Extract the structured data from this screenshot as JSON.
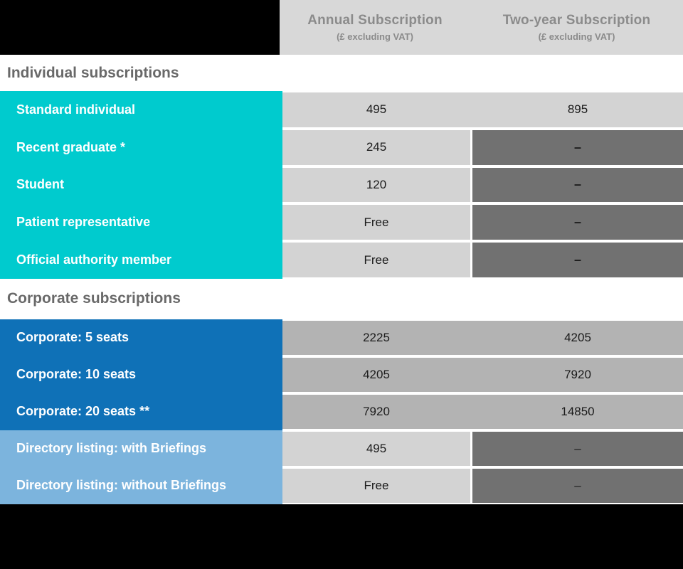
{
  "palette": {
    "teal": "#00cbce",
    "blue": "#0f71b7",
    "light_blue": "#7cb4dd",
    "cell_light": "#d3d3d3",
    "cell_medium": "#b3b3b3",
    "cell_dark": "#717171",
    "header_bg": "#d8d8d8",
    "header_text": "#8b8b8b",
    "title_color": "#696969",
    "black": "#000000",
    "value_text": "#1b1b1b",
    "label_text": "#ffffff"
  },
  "header": {
    "annual": {
      "title": "Annual Subscription",
      "subtitle": "(£ excluding VAT)"
    },
    "two_year": {
      "title": "Two-year Subscription",
      "subtitle": "(£ excluding VAT)"
    }
  },
  "sections": {
    "individual": {
      "title": "Individual subscriptions",
      "rows": [
        {
          "label": "Standard individual",
          "annual": "495",
          "two_year": "895"
        },
        {
          "label": "Recent graduate *",
          "annual": "245",
          "two_year": "–"
        },
        {
          "label": "Student",
          "annual": "120",
          "two_year": "–"
        },
        {
          "label": "Patient representative",
          "annual": "Free",
          "two_year": "–"
        },
        {
          "label": "Official authority member",
          "annual": "Free",
          "two_year": "–"
        }
      ]
    },
    "corporate": {
      "title": "Corporate subscriptions",
      "rows": [
        {
          "label": "Corporate: 5 seats",
          "annual": "2225",
          "two_year": "4205"
        },
        {
          "label": "Corporate: 10 seats",
          "annual": "4205",
          "two_year": "7920"
        },
        {
          "label": "Corporate: 20 seats **",
          "annual": "7920",
          "two_year": "14850"
        },
        {
          "label": "Directory listing: with Briefings",
          "annual": "495",
          "two_year": "–"
        },
        {
          "label": "Directory listing: without Briefings",
          "annual": "Free",
          "two_year": "–"
        }
      ]
    }
  },
  "chart_data": {
    "type": "table",
    "columns": [
      "",
      "Annual Subscription (£ excluding VAT)",
      "Two-year Subscription (£ excluding VAT)"
    ],
    "sections": [
      {
        "title": "Individual subscriptions",
        "rows": [
          [
            "Standard individual",
            "495",
            "895"
          ],
          [
            "Recent graduate *",
            "245",
            "–"
          ],
          [
            "Student",
            "120",
            "–"
          ],
          [
            "Patient representative",
            "Free",
            "–"
          ],
          [
            "Official authority member",
            "Free",
            "–"
          ]
        ]
      },
      {
        "title": "Corporate subscriptions",
        "rows": [
          [
            "Corporate: 5 seats",
            "2225",
            "4205"
          ],
          [
            "Corporate: 10 seats",
            "4205",
            "7920"
          ],
          [
            "Corporate: 20 seats **",
            "7920",
            "14850"
          ],
          [
            "Directory listing: with Briefings",
            "495",
            "–"
          ],
          [
            "Directory listing: without Briefings",
            "Free",
            "–"
          ]
        ]
      }
    ]
  }
}
